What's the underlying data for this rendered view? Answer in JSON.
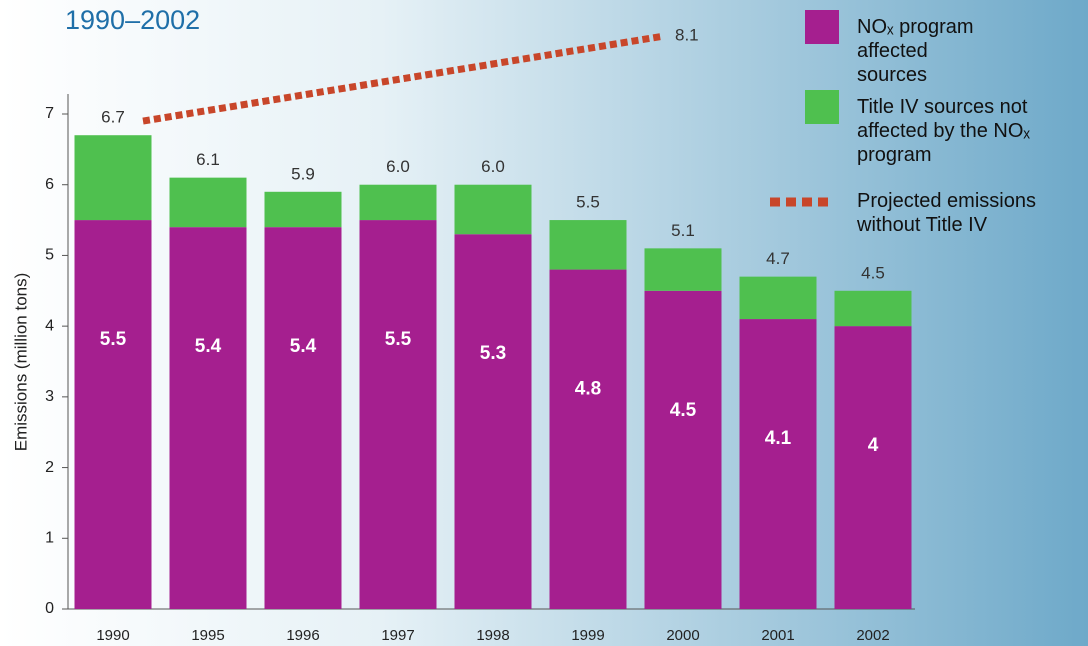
{
  "chart_data": {
    "type": "stacked_bar",
    "subtitle": "1990–2002",
    "y_label": "Emissions (million tons)",
    "categories": [
      "1990",
      "1995",
      "1996",
      "1997",
      "1998",
      "1999",
      "2000",
      "2001",
      "2002"
    ],
    "series": [
      {
        "name": "NOₓ program affected sources",
        "color": "#a51f8f",
        "values": [
          5.5,
          5.4,
          5.4,
          5.5,
          5.3,
          4.8,
          4.5,
          4.1,
          4.0
        ]
      },
      {
        "name": "Title IV sources not affected by the NOₓ program",
        "color": "#4fc04f",
        "values": [
          1.2,
          0.7,
          0.5,
          0.5,
          0.7,
          0.7,
          0.6,
          0.6,
          0.5
        ]
      }
    ],
    "totals": [
      6.7,
      6.1,
      5.9,
      6.0,
      6.0,
      5.5,
      5.1,
      4.7,
      4.5
    ],
    "total_labels": [
      "6.7",
      "6.1",
      "5.9",
      "6.0",
      "6.0",
      "5.5",
      "5.1",
      "4.7",
      "4.5"
    ],
    "projected": {
      "name": "Projected emissions without Title IV",
      "color": "#c8462a",
      "x": [
        "1990",
        "2000"
      ],
      "values": [
        6.9,
        8.1
      ],
      "value_labels": [
        "6.9",
        "8.1"
      ]
    },
    "ylim": [
      0,
      7
    ],
    "yticks": [
      0,
      1,
      2,
      3,
      4,
      5,
      6,
      7
    ]
  }
}
